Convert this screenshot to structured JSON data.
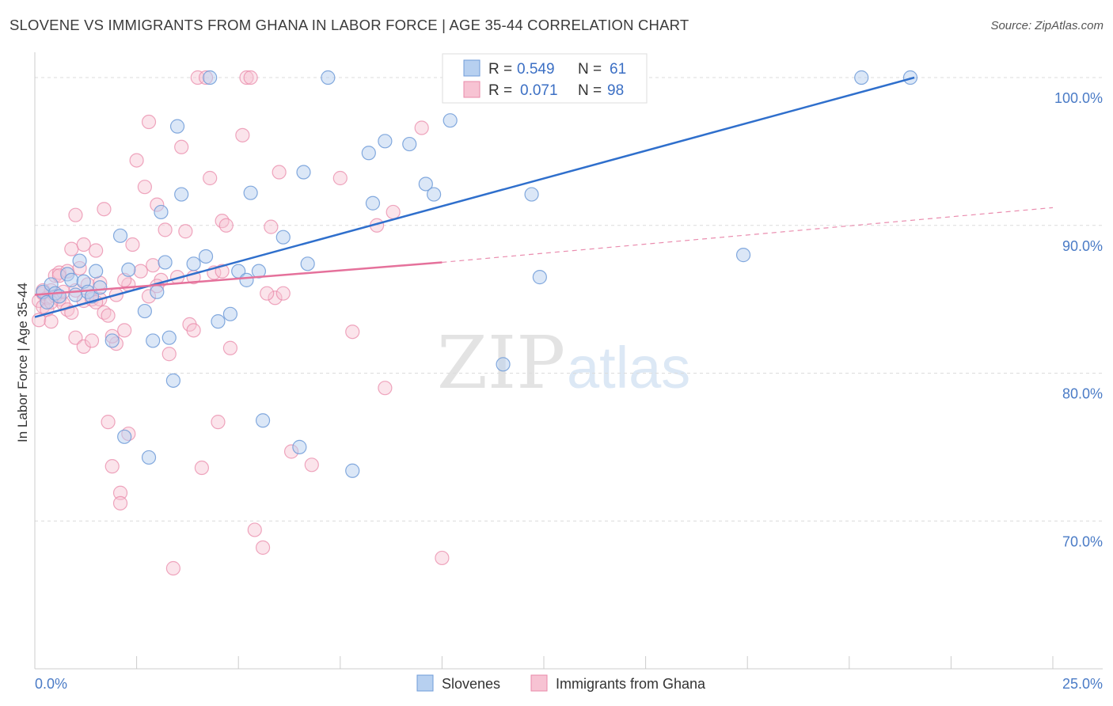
{
  "header": {
    "title": "SLOVENE VS IMMIGRANTS FROM GHANA IN LABOR FORCE | AGE 35-44 CORRELATION CHART",
    "source": "Source: ZipAtlas.com"
  },
  "watermark": {
    "zip": "ZIP",
    "atlas": "atlas"
  },
  "legend_box": {
    "rows": [
      {
        "r_label": "R =",
        "r_value": "0.549",
        "n_label": "N =",
        "n_value": "61"
      },
      {
        "r_label": "R =",
        "r_value": "0.071",
        "n_label": "N =",
        "n_value": "98"
      }
    ]
  },
  "bottom_legend": {
    "series1": "Slovenes",
    "series2": "Immigrants from Ghana"
  },
  "colors": {
    "series1_fill": "#b7d0f0",
    "series1_stroke": "#6f9bd8",
    "series1_line": "#2f6fcc",
    "series2_fill": "#f7c3d3",
    "series2_stroke": "#e98aaa",
    "series2_line": "#e5719b",
    "grid": "#dcdcdc",
    "tick_text": "#4a7bc6"
  },
  "chart_data": {
    "type": "scatter",
    "title": "SLOVENE VS IMMIGRANTS FROM GHANA IN LABOR FORCE | AGE 35-44 CORRELATION CHART",
    "xlabel": "",
    "ylabel": "In Labor Force | Age 35-44",
    "xlim": [
      0,
      25
    ],
    "ylim": [
      60,
      101.5
    ],
    "x_tick_labels": [
      "0.0%",
      "25.0%"
    ],
    "y_ticks": [
      70,
      80,
      90,
      100
    ],
    "y_tick_labels": [
      "70.0%",
      "80.0%",
      "90.0%",
      "100.0%"
    ],
    "grid": true,
    "legend_position": "top-center",
    "series": [
      {
        "name": "Slovenes",
        "r": 0.549,
        "n": 61,
        "trend": {
          "x": [
            0.0,
            21.6
          ],
          "y": [
            83.8,
            100.0
          ],
          "dashed_extension": false
        },
        "points": [
          [
            0.2,
            85.5
          ],
          [
            0.3,
            84.8
          ],
          [
            0.4,
            86.0
          ],
          [
            0.5,
            85.4
          ],
          [
            0.6,
            85.2
          ],
          [
            0.8,
            86.7
          ],
          [
            0.9,
            86.3
          ],
          [
            1.0,
            85.3
          ],
          [
            1.1,
            87.6
          ],
          [
            1.2,
            86.2
          ],
          [
            1.3,
            85.5
          ],
          [
            1.4,
            85.2
          ],
          [
            1.5,
            86.9
          ],
          [
            1.6,
            85.8
          ],
          [
            1.9,
            82.2
          ],
          [
            2.1,
            89.3
          ],
          [
            2.2,
            75.7
          ],
          [
            2.3,
            87.0
          ],
          [
            2.7,
            84.2
          ],
          [
            2.8,
            74.3
          ],
          [
            2.9,
            82.2
          ],
          [
            3.0,
            85.5
          ],
          [
            3.1,
            90.9
          ],
          [
            3.2,
            87.5
          ],
          [
            3.3,
            82.4
          ],
          [
            3.4,
            79.5
          ],
          [
            3.5,
            96.7
          ],
          [
            3.6,
            92.1
          ],
          [
            3.9,
            87.4
          ],
          [
            4.8,
            84.0
          ],
          [
            4.2,
            87.9
          ],
          [
            4.3,
            100.0
          ],
          [
            4.5,
            83.5
          ],
          [
            5.0,
            86.9
          ],
          [
            5.3,
            92.2
          ],
          [
            5.5,
            86.9
          ],
          [
            5.6,
            76.8
          ],
          [
            5.2,
            86.3
          ],
          [
            6.1,
            89.2
          ],
          [
            6.5,
            75.0
          ],
          [
            6.6,
            93.6
          ],
          [
            6.7,
            87.4
          ],
          [
            7.2,
            100.0
          ],
          [
            7.8,
            73.4
          ],
          [
            8.2,
            94.9
          ],
          [
            8.3,
            91.5
          ],
          [
            8.6,
            95.7
          ],
          [
            9.2,
            95.5
          ],
          [
            9.6,
            92.8
          ],
          [
            9.8,
            92.1
          ],
          [
            10.2,
            97.1
          ],
          [
            11.2,
            100.0
          ],
          [
            11.5,
            80.6
          ],
          [
            12.2,
            92.1
          ],
          [
            12.4,
            86.5
          ],
          [
            13.2,
            100.0
          ],
          [
            13.7,
            100.0
          ],
          [
            14.0,
            100.0
          ],
          [
            17.4,
            88.0
          ],
          [
            20.3,
            100.0
          ],
          [
            21.5,
            100.0
          ]
        ]
      },
      {
        "name": "Immigrants from Ghana",
        "r": 0.071,
        "n": 98,
        "trend": {
          "x": [
            0.0,
            10.0
          ],
          "y": [
            85.3,
            87.5
          ],
          "dashed_extension_to": [
            25.0,
            91.2
          ]
        },
        "points": [
          [
            0.1,
            84.9
          ],
          [
            0.1,
            83.6
          ],
          [
            0.2,
            85.4
          ],
          [
            0.2,
            84.5
          ],
          [
            0.3,
            85.1
          ],
          [
            0.3,
            84.3
          ],
          [
            0.4,
            85.6
          ],
          [
            0.4,
            83.5
          ],
          [
            0.5,
            85.2
          ],
          [
            0.5,
            86.6
          ],
          [
            0.6,
            85.0
          ],
          [
            0.6,
            86.8
          ],
          [
            0.7,
            84.7
          ],
          [
            0.7,
            85.5
          ],
          [
            0.8,
            86.9
          ],
          [
            0.8,
            84.3
          ],
          [
            0.9,
            88.4
          ],
          [
            0.9,
            84.1
          ],
          [
            1.0,
            90.7
          ],
          [
            1.0,
            85.6
          ],
          [
            1.0,
            82.4
          ],
          [
            1.1,
            87.1
          ],
          [
            1.2,
            88.7
          ],
          [
            1.2,
            84.9
          ],
          [
            1.2,
            81.8
          ],
          [
            1.3,
            86.0
          ],
          [
            1.4,
            82.2
          ],
          [
            1.4,
            85.0
          ],
          [
            1.5,
            88.3
          ],
          [
            1.6,
            86.1
          ],
          [
            1.6,
            85.0
          ],
          [
            1.7,
            91.1
          ],
          [
            1.7,
            84.1
          ],
          [
            1.8,
            83.9
          ],
          [
            1.8,
            76.7
          ],
          [
            1.9,
            73.7
          ],
          [
            2.0,
            82.0
          ],
          [
            2.0,
            85.3
          ],
          [
            2.1,
            71.9
          ],
          [
            2.1,
            71.2
          ],
          [
            2.2,
            82.9
          ],
          [
            2.3,
            75.9
          ],
          [
            2.3,
            86.0
          ],
          [
            2.4,
            88.7
          ],
          [
            2.5,
            94.4
          ],
          [
            2.6,
            86.9
          ],
          [
            2.7,
            92.6
          ],
          [
            2.8,
            97.0
          ],
          [
            2.9,
            87.3
          ],
          [
            3.0,
            91.4
          ],
          [
            3.1,
            86.3
          ],
          [
            3.2,
            89.7
          ],
          [
            3.3,
            81.3
          ],
          [
            3.4,
            66.8
          ],
          [
            3.5,
            86.5
          ],
          [
            3.6,
            95.3
          ],
          [
            3.7,
            89.6
          ],
          [
            3.8,
            83.3
          ],
          [
            3.9,
            82.9
          ],
          [
            4.0,
            100.0
          ],
          [
            4.1,
            73.6
          ],
          [
            4.2,
            100.0
          ],
          [
            4.3,
            93.2
          ],
          [
            4.4,
            86.8
          ],
          [
            4.5,
            76.7
          ],
          [
            4.6,
            90.3
          ],
          [
            4.7,
            90.0
          ],
          [
            4.8,
            81.7
          ],
          [
            5.1,
            96.1
          ],
          [
            5.2,
            100.0
          ],
          [
            5.3,
            100.0
          ],
          [
            5.4,
            69.4
          ],
          [
            5.6,
            68.2
          ],
          [
            5.8,
            89.9
          ],
          [
            5.9,
            85.1
          ],
          [
            6.0,
            93.6
          ],
          [
            6.1,
            85.4
          ],
          [
            6.3,
            74.7
          ],
          [
            6.8,
            73.8
          ],
          [
            7.5,
            93.2
          ],
          [
            7.8,
            82.8
          ],
          [
            8.4,
            90.0
          ],
          [
            8.6,
            79.0
          ],
          [
            8.8,
            90.9
          ],
          [
            9.5,
            96.6
          ],
          [
            10.0,
            67.5
          ],
          [
            10.3,
            100.0
          ],
          [
            0.2,
            85.6
          ],
          [
            0.6,
            86.6
          ],
          [
            1.5,
            84.8
          ],
          [
            2.2,
            86.3
          ],
          [
            3.0,
            85.9
          ],
          [
            3.9,
            86.5
          ],
          [
            4.6,
            86.9
          ],
          [
            5.7,
            85.4
          ],
          [
            0.4,
            84.8
          ],
          [
            1.9,
            82.5
          ],
          [
            2.8,
            85.2
          ]
        ]
      }
    ]
  }
}
